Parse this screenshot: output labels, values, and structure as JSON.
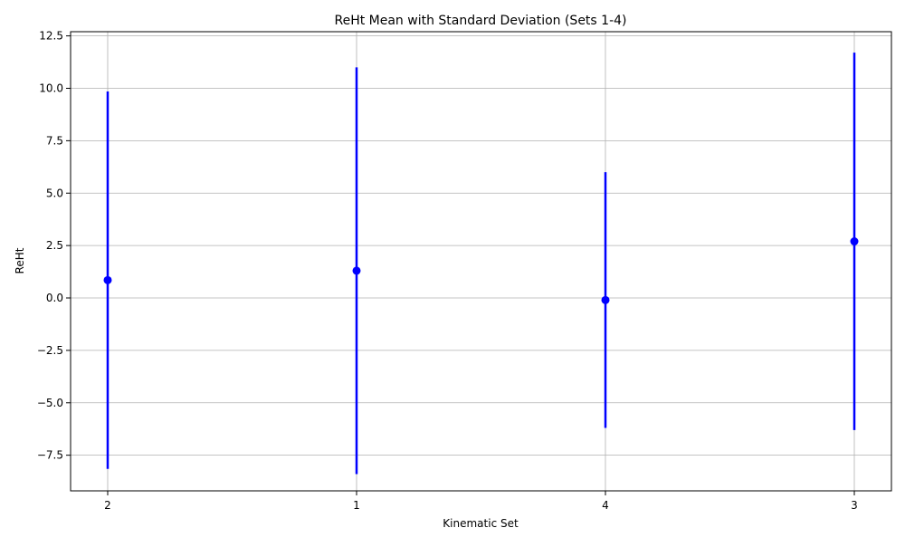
{
  "chart_data": {
    "type": "scatter",
    "title": "ReHt Mean with Standard Deviation (Sets 1-4)",
    "xlabel": "Kinematic Set",
    "ylabel": "ReHt",
    "categories": [
      "2",
      "1",
      "4",
      "3"
    ],
    "means": [
      0.85,
      1.3,
      -0.1,
      2.7
    ],
    "std_dev": [
      9.0,
      9.7,
      6.1,
      9.0
    ],
    "y_ticks": [
      -7.5,
      -5.0,
      -2.5,
      0.0,
      2.5,
      5.0,
      7.5,
      10.0,
      12.5
    ],
    "y_tick_labels": [
      "−7.5",
      "−5.0",
      "−2.5",
      "0.0",
      "2.5",
      "5.0",
      "7.5",
      "10.0",
      "12.5"
    ],
    "ylim": [
      -9.2,
      12.7
    ],
    "grid": true,
    "marker_color": "#0000ff",
    "errorbar_color": "#0000ff"
  }
}
